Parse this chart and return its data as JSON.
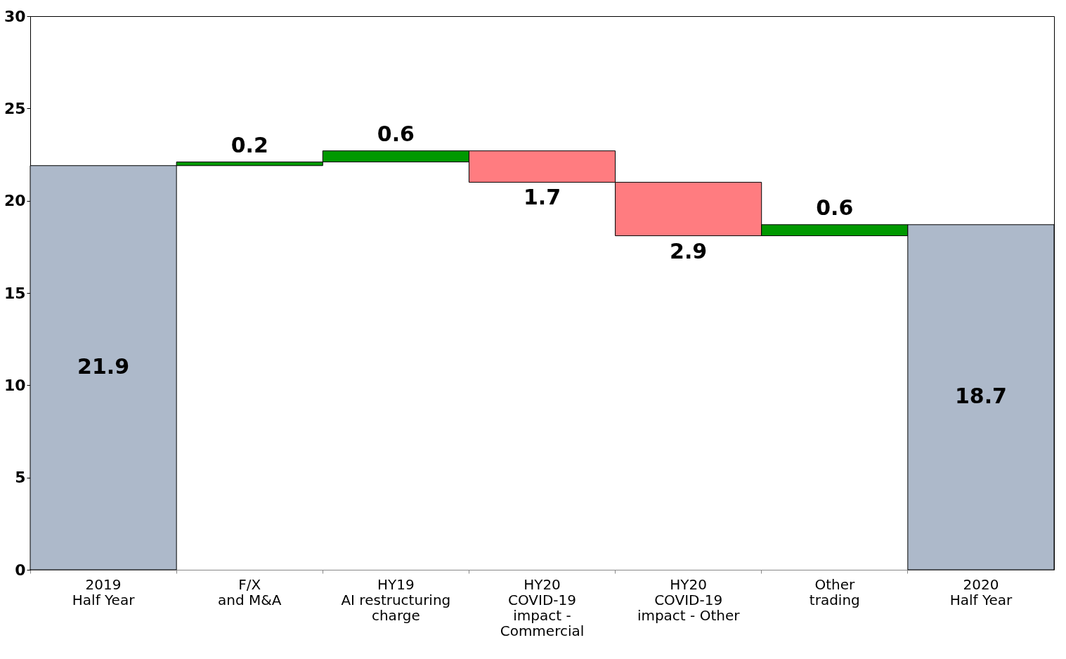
{
  "chart_data": {
    "type": "bar",
    "categories": [
      "2019\nHalf Year",
      "F/X\nand M&A",
      "HY19\nAI restructuring\ncharge",
      "HY20\nCOVID-19\nimpact -\nCommercial",
      "HY20\nCOVID-19\nimpact - Other",
      "Other\ntrading",
      "2020\nHalf Year"
    ],
    "values": [
      21.9,
      0.2,
      0.6,
      -1.7,
      -2.9,
      0.6,
      18.7
    ],
    "base": [
      0,
      21.9,
      22.1,
      22.7,
      21.0,
      18.1,
      0
    ],
    "colors": [
      "#adb9ca",
      "#009900",
      "#009900",
      "#ff7c80",
      "#ff7c80",
      "#009900",
      "#adb9ca"
    ],
    "value_labels": [
      "21.9",
      "0.2",
      "0.6",
      "1.7",
      "2.9",
      "0.6",
      "18.7"
    ],
    "ylim": [
      0,
      30
    ],
    "yticks": [
      0,
      5,
      10,
      15,
      20,
      25,
      30
    ],
    "grid": false
  }
}
